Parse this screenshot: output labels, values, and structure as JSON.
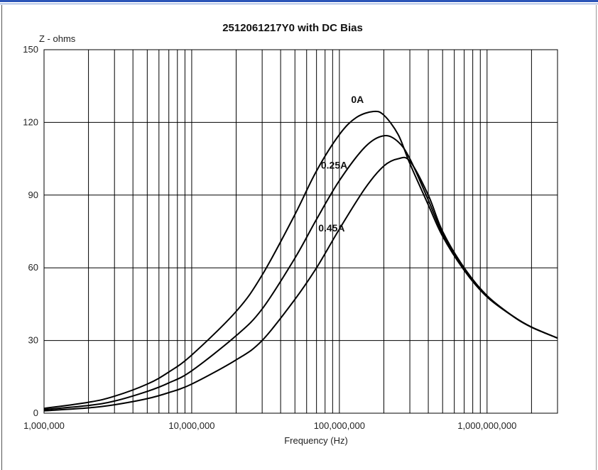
{
  "chart_data": {
    "type": "line",
    "title": "2512061217Y0 with DC Bias",
    "ylabel": "Z - ohms",
    "xlabel": "Frequency (Hz)",
    "xscale": "log",
    "xlim": [
      1000000,
      3000000000
    ],
    "ylim": [
      0,
      150
    ],
    "yticks": [
      0,
      30,
      60,
      90,
      120,
      150
    ],
    "ytick_labels": [
      "0",
      "30",
      "60",
      "90",
      "120",
      "150"
    ],
    "xticks": [
      1000000,
      10000000,
      100000000,
      1000000000
    ],
    "xtick_labels": [
      "1,000,000",
      "10,000,000",
      "100,000,000",
      "1,000,000,000"
    ],
    "grid": true,
    "legend": "none (series labelled inline on curves)",
    "series": [
      {
        "name": "0A",
        "x": [
          1000000,
          2000000,
          3000000,
          5000000,
          7000000,
          10000000,
          20000000,
          30000000,
          50000000,
          70000000,
          100000000,
          130000000,
          170000000,
          200000000,
          250000000,
          300000000,
          400000000,
          500000000,
          700000000,
          1000000000,
          1500000000,
          2000000000,
          3000000000
        ],
        "y": [
          2,
          4.5,
          7,
          12,
          17,
          24,
          42,
          57,
          82,
          100,
          115,
          122,
          124.5,
          123,
          115,
          103,
          86,
          73,
          59,
          48,
          40,
          35.5,
          31
        ]
      },
      {
        "name": "0.25A",
        "x": [
          1000000,
          2000000,
          3000000,
          5000000,
          7000000,
          10000000,
          20000000,
          30000000,
          50000000,
          70000000,
          100000000,
          150000000,
          200000000,
          250000000,
          300000000,
          400000000,
          500000000,
          700000000,
          1000000000,
          1500000000,
          2000000000,
          3000000000
        ],
        "y": [
          1.5,
          3.2,
          5,
          9,
          12.5,
          17.5,
          32,
          43,
          64,
          80,
          96,
          110,
          114.5,
          112,
          105,
          88,
          74,
          59,
          48,
          40,
          35.5,
          31
        ]
      },
      {
        "name": "0.45A",
        "x": [
          1000000,
          2000000,
          3000000,
          5000000,
          7000000,
          10000000,
          20000000,
          30000000,
          50000000,
          70000000,
          100000000,
          150000000,
          200000000,
          250000000,
          300000000,
          400000000,
          500000000,
          700000000,
          1000000000,
          1500000000,
          2000000000,
          3000000000
        ],
        "y": [
          1,
          2.2,
          3.5,
          6,
          8.5,
          12,
          22,
          30,
          47,
          60,
          76,
          93,
          102,
          105,
          104,
          90,
          75,
          60,
          48.5,
          40,
          35.5,
          31
        ]
      }
    ]
  }
}
